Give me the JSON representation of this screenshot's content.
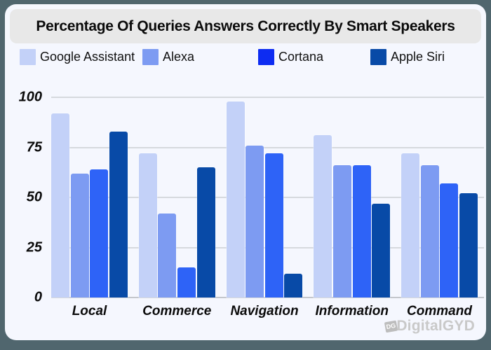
{
  "page": {
    "title": "Percentage Of Queries Answers Correctly By Smart Speakers",
    "watermark": {
      "badge_text": "DG",
      "brand_text": "DigitalGYD"
    }
  },
  "colors": {
    "outer_background": "#50666e",
    "card_background": "#f5f7fe",
    "banner_background": "#e8e8e8",
    "gridline": "#d6d9de",
    "baseline": "#c4c7cc",
    "text": "#0b0b0b",
    "watermark_gray": "#c9c9c9"
  },
  "chart_data": {
    "type": "bar",
    "title": "Percentage Of Queries Answers Correctly By Smart Speakers",
    "categories": [
      "Local",
      "Commerce",
      "Navigation",
      "Information",
      "Command"
    ],
    "series": [
      {
        "name": "Google Assistant",
        "color": "#c3d1f8",
        "legend_color": "#c3d1f8",
        "values": [
          92,
          72,
          98,
          81,
          72
        ]
      },
      {
        "name": "Alexa",
        "color": "#7d9bf2",
        "legend_color": "#7d9bf2",
        "values": [
          62,
          42,
          76,
          66,
          66
        ]
      },
      {
        "name": "Cortana",
        "color": "#2e63f7",
        "legend_color": "#0d2cf2",
        "values": [
          64,
          15,
          72,
          66,
          57
        ]
      },
      {
        "name": "Apple Siri",
        "color": "#084aa7",
        "legend_color": "#084aa7",
        "values": [
          83,
          65,
          12,
          47,
          52
        ]
      }
    ],
    "yticks": [
      0,
      25,
      50,
      75,
      100
    ],
    "ylim": [
      0,
      100
    ],
    "grid": "horizontal",
    "legend_position": "top",
    "xlabel": "",
    "ylabel": ""
  }
}
